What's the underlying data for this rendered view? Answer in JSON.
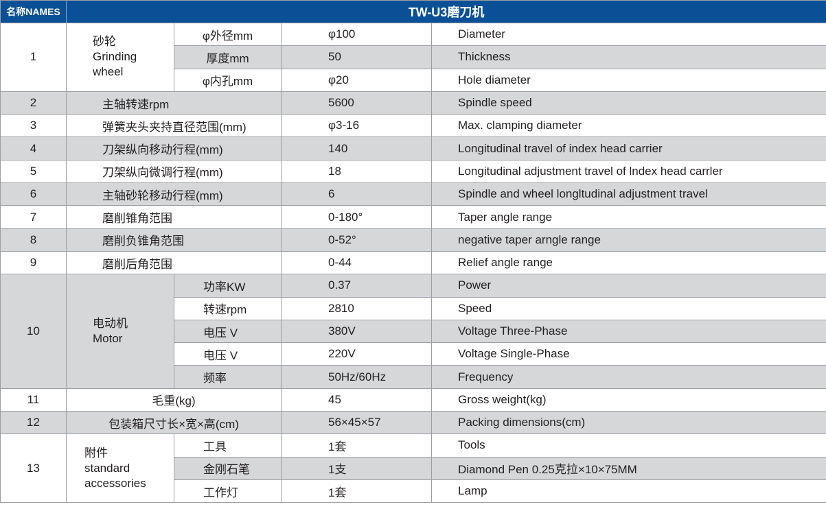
{
  "header": {
    "names_label": "名称NAMES",
    "title": "TW-U3磨刀机"
  },
  "colors": {
    "header_bg": "#0a5097",
    "row_alt": "#d5d7d9",
    "border": "#9c9ea1"
  },
  "rows": [
    {
      "no": "1",
      "group_cn": "砂轮",
      "group_en": [
        "Grinding",
        "wheel"
      ],
      "subs": [
        {
          "label": "φ外径mm",
          "value": "φ100",
          "en": "Diameter"
        },
        {
          "label": "厚度mm",
          "value": "50",
          "en": "Thickness"
        },
        {
          "label": "φ内孔mm",
          "value": "φ20",
          "en": "Hole diameter"
        }
      ]
    },
    {
      "no": "2",
      "label": "主轴转速rpm",
      "value": "5600",
      "en": "Spindle speed"
    },
    {
      "no": "3",
      "label": "弹簧夹头夹持直径范围(mm)",
      "value": "φ3-16",
      "en": "Max. clamping diameter"
    },
    {
      "no": "4",
      "label": "刀架纵向移动行程(mm)",
      "value": "140",
      "en": "Longitudinal travel of index head carrier"
    },
    {
      "no": "5",
      "label": "刀架纵向微调行程(mm)",
      "value": "18",
      "en": "Longitudinal adjustment  travel of lndex head carrler"
    },
    {
      "no": "6",
      "label": "主轴砂轮移动行程(mm)",
      "value": "6",
      "en": "Spindle and wheel longltudinal adjustment  travel"
    },
    {
      "no": "7",
      "label": "磨削锥角范围",
      "value": "0-180°",
      "en": "Taper angle range"
    },
    {
      "no": "8",
      "label": "磨削负锥角范围",
      "value": "0-52°",
      "en": "negative taper arngle range"
    },
    {
      "no": "9",
      "label": "磨削后角范围",
      "value": "0-44",
      "en": "Relief angle range"
    },
    {
      "no": "10",
      "group_cn": "电动机",
      "group_en": [
        "Motor"
      ],
      "subs": [
        {
          "label": "功率KW",
          "value": "0.37",
          "en": "Power"
        },
        {
          "label": "转速rpm",
          "value": "2810",
          "en": "Speed"
        },
        {
          "label": "电压 V",
          "value": "380V",
          "en": "Voltage Three-Phase"
        },
        {
          "label": "电压 V",
          "value": "220V",
          "en": "Voltage Single-Phase"
        },
        {
          "label": "频率",
          "value": "50Hz/60Hz",
          "en": "Frequency"
        }
      ]
    },
    {
      "no": "11",
      "label": "毛重(kg)",
      "value": "45",
      "en": "Gross weight(kg)",
      "center": true
    },
    {
      "no": "12",
      "label": "包装箱尺寸长×宽×高(cm)",
      "value": "56×45×57",
      "en": "Packing dimensions(cm)",
      "center": true
    },
    {
      "no": "13",
      "group_cn": "附件",
      "group_en": [
        "standard",
        "accessories"
      ],
      "subs": [
        {
          "label": "工具",
          "value": "1套",
          "en": "Tools"
        },
        {
          "label": "金刚石笔",
          "value": "1支",
          "en": "Diamond Pen 0.25克拉×10×75MM"
        },
        {
          "label": "工作灯",
          "value": "1套",
          "en": "Lamp"
        }
      ]
    }
  ]
}
